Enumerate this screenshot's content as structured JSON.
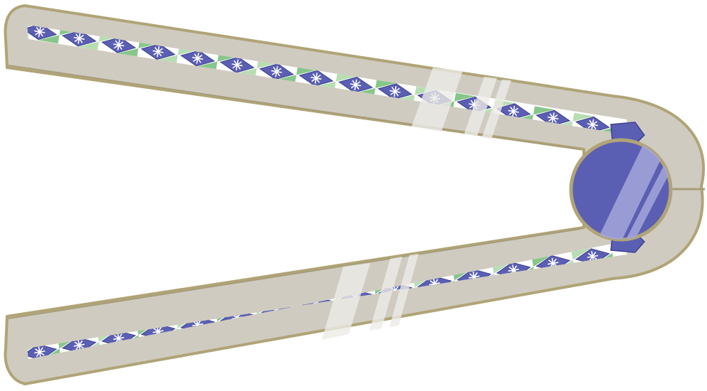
{
  "subject": "jeweled-v-shaped-bracelet-clip",
  "colors": {
    "band_fill": "#cfcbc0",
    "band_outline": "#b0a477",
    "gem_blue": "#5b5fb3",
    "gem_green": "#87c68a",
    "gem_green_light": "#b7ddb3",
    "sparkle": "#ffffff",
    "highlight": "#ecebe6",
    "background": "#ffffff"
  },
  "parts": {
    "upper_arm": {
      "diamond_count": 15
    },
    "lower_arm": {
      "diamond_count": 15
    },
    "hinge_gem": {
      "shape": "circle",
      "icon": "round-blue-gem"
    }
  }
}
